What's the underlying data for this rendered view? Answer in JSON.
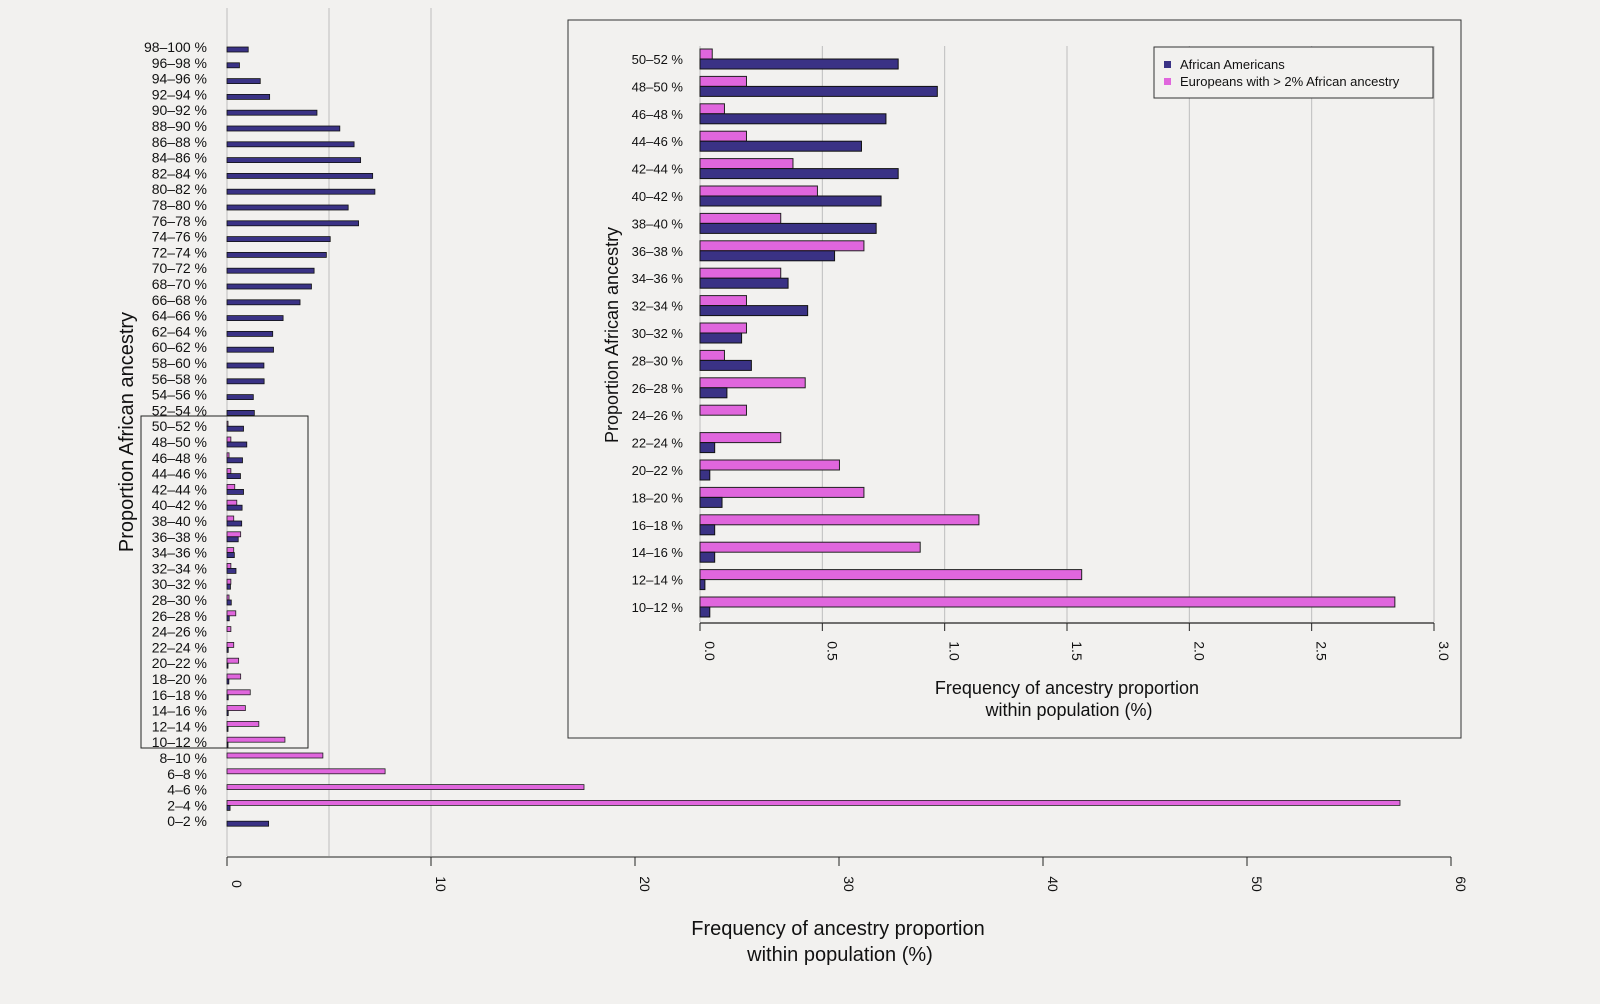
{
  "colors": {
    "african_americans": "#3a3285",
    "europeans": "#e066dd",
    "grid": "#bdbdbd",
    "axis": "#222222",
    "background": "#f2f1ef"
  },
  "chart_data": [
    {
      "type": "bar",
      "orientation": "horizontal",
      "title": "",
      "xlabel": "Frequency of ancestry proportion within population (%)",
      "xlabel_lines": [
        "Frequency of ancestry proportion",
        "within population (%)"
      ],
      "ylabel": "Proportion African ancestry",
      "xlim": [
        0,
        60
      ],
      "xticks": [
        "0",
        "10",
        "20",
        "30",
        "40",
        "50",
        "60"
      ],
      "grid": "vertical lines at 0, 5, 10",
      "categories": [
        "0–2 %",
        "2–4 %",
        "4–6 %",
        "6–8 %",
        "8–10 %",
        "10–12 %",
        "12–14 %",
        "14–16 %",
        "16–18 %",
        "18–20 %",
        "20–22 %",
        "22–24 %",
        "24–26 %",
        "26–28 %",
        "28–30 %",
        "30–32 %",
        "32–34 %",
        "34–36 %",
        "36–38 %",
        "38–40 %",
        "40–42 %",
        "42–44 %",
        "44–46 %",
        "46–48 %",
        "48–50 %",
        "50–52 %",
        "52–54 %",
        "54–56 %",
        "56–58 %",
        "58–60 %",
        "60–62 %",
        "62–64 %",
        "64–66 %",
        "66–68 %",
        "68–70 %",
        "70–72 %",
        "72–74 %",
        "74–76 %",
        "76–78 %",
        "78–80 %",
        "80–82 %",
        "82–84 %",
        "84–86 %",
        "86–88 %",
        "88–90 %",
        "90–92 %",
        "92–94 %",
        "94–96 %",
        "96–98 %",
        "98–100 %"
      ],
      "series": [
        {
          "name": "African Americans",
          "values": [
            2.04,
            0.15,
            0.0,
            0.0,
            0.0,
            0.04,
            0.02,
            0.06,
            0.06,
            0.09,
            0.04,
            0.06,
            0.0,
            0.11,
            0.21,
            0.17,
            0.44,
            0.36,
            0.55,
            0.72,
            0.74,
            0.81,
            0.66,
            0.76,
            0.97,
            0.81,
            1.34,
            1.29,
            1.82,
            1.81,
            2.28,
            2.24,
            2.75,
            3.58,
            4.14,
            4.27,
            4.87,
            5.06,
            6.45,
            5.94,
            7.25,
            7.14,
            6.55,
            6.23,
            5.53,
            4.41,
            2.09,
            1.63,
            0.61,
            1.04
          ]
        },
        {
          "name": "Europeans with > 2% African ancestry",
          "values": [
            0.0,
            57.5,
            17.5,
            7.75,
            4.7,
            2.84,
            1.56,
            0.9,
            1.14,
            0.67,
            0.57,
            0.33,
            0.19,
            0.43,
            0.1,
            0.19,
            0.19,
            0.33,
            0.67,
            0.33,
            0.48,
            0.38,
            0.19,
            0.1,
            0.19,
            0.05,
            0.0,
            0.0,
            0.0,
            0.0,
            0.0,
            0.0,
            0.0,
            0.0,
            0.0,
            0.0,
            0.0,
            0.0,
            0.0,
            0.0,
            0.0,
            0.0,
            0.0,
            0.0,
            0.0,
            0.0,
            0.0,
            0.0,
            0.0,
            0.0
          ]
        }
      ],
      "highlight_box": "categories 10–12 % through 50–52 % (shown zoomed in inset)"
    },
    {
      "type": "bar",
      "orientation": "horizontal",
      "title": "",
      "xlabel": "Frequency of ancestry proportion within population (%)",
      "xlabel_lines": [
        "Frequency of ancestry proportion",
        "within population (%)"
      ],
      "ylabel": "Proportion African ancestry",
      "xlim": [
        0,
        3.0
      ],
      "xticks": [
        "0.0",
        "0.5",
        "1.0",
        "1.5",
        "2.0",
        "2.5",
        "3.0"
      ],
      "grid": "vertical lines every 0.5",
      "legend": {
        "position": "top-right",
        "entries": [
          "African Americans",
          "Europeans with > 2% African ancestry"
        ]
      },
      "categories": [
        "10–12 %",
        "12–14 %",
        "14–16 %",
        "16–18 %",
        "18–20 %",
        "20–22 %",
        "22–24 %",
        "24–26 %",
        "26–28 %",
        "28–30 %",
        "30–32 %",
        "32–34 %",
        "34–36 %",
        "36–38 %",
        "38–40 %",
        "40–42 %",
        "42–44 %",
        "44–46 %",
        "46–48 %",
        "48–50 %",
        "50–52 %"
      ],
      "series": [
        {
          "name": "African Americans",
          "values": [
            0.04,
            0.02,
            0.06,
            0.06,
            0.09,
            0.04,
            0.06,
            0.0,
            0.11,
            0.21,
            0.17,
            0.44,
            0.36,
            0.55,
            0.72,
            0.74,
            0.81,
            0.66,
            0.76,
            0.97,
            0.81
          ]
        },
        {
          "name": "Europeans with > 2% African ancestry",
          "values": [
            2.84,
            1.56,
            0.9,
            1.14,
            0.67,
            0.57,
            0.33,
            0.19,
            0.43,
            0.1,
            0.19,
            0.19,
            0.33,
            0.67,
            0.33,
            0.48,
            0.38,
            0.19,
            0.1,
            0.19,
            0.05
          ]
        }
      ]
    }
  ]
}
